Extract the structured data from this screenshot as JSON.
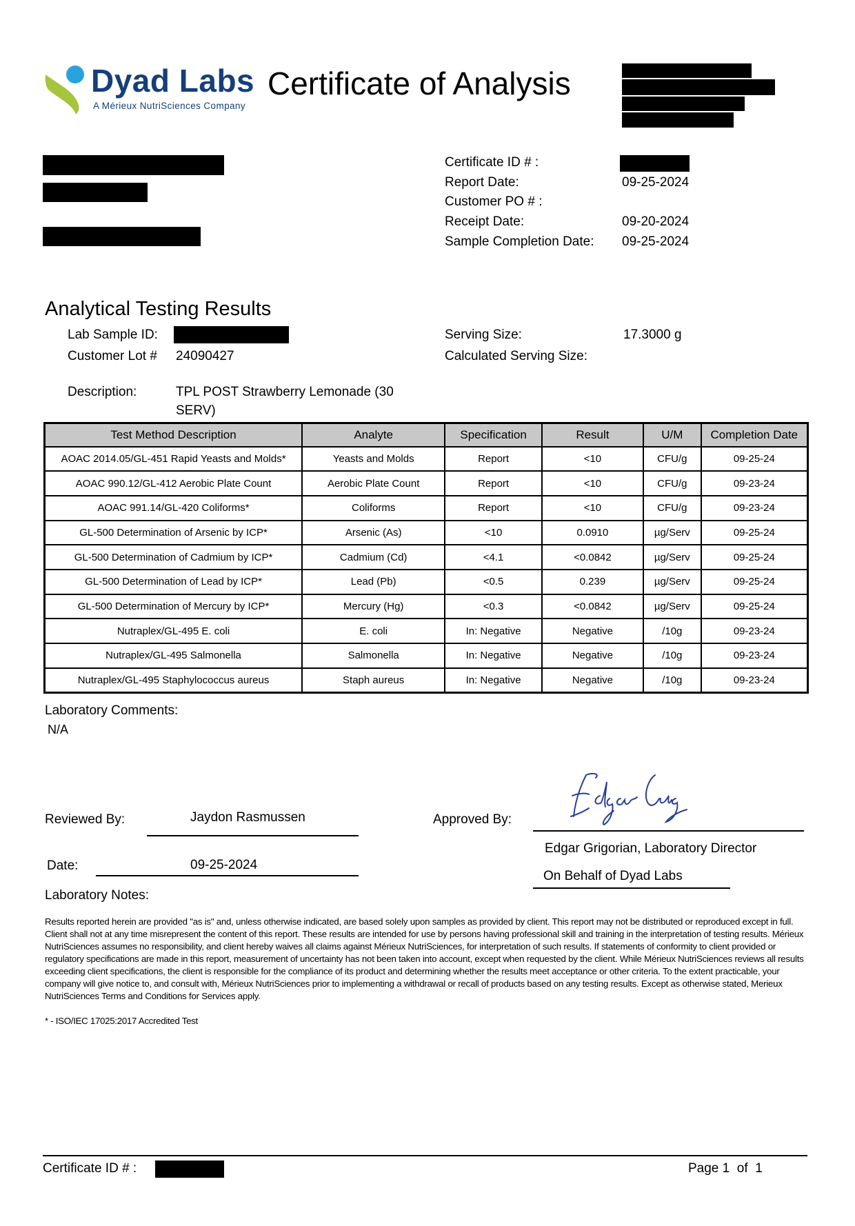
{
  "header": {
    "brand": "Dyad Labs",
    "brand_sub": "A Mérieux NutriSciences Company",
    "title": "Certificate of Analysis",
    "brand_color": "#163f7a",
    "accent_blue": "#29a3dc",
    "accent_green": "#a6c43c"
  },
  "info": [
    {
      "label": "Certificate ID # :",
      "value": ""
    },
    {
      "label": "Report Date:",
      "value": "09-25-2024"
    },
    {
      "label": "Customer PO # :",
      "value": ""
    },
    {
      "label": "Receipt Date:",
      "value": "09-20-2024"
    },
    {
      "label": "Sample Completion Date:",
      "value": "09-25-2024"
    }
  ],
  "section_title": "Analytical Testing Results",
  "sample": {
    "lab_id_label": "Lab Sample ID:",
    "lot_label": "Customer Lot #",
    "lot_value": "24090427",
    "serving_label": "Serving Size:",
    "serving_value": "17.3000 g",
    "calc_label": "Calculated Serving Size:",
    "desc_label": "Description:",
    "desc_line1": "TPL POST Strawberry Lemonade (30",
    "desc_line2": "SERV)"
  },
  "table": {
    "headers": [
      "Test Method Description",
      "Analyte",
      "Specification",
      "Result",
      "U/M",
      "Completion Date"
    ],
    "rows": [
      [
        "AOAC 2014.05/GL-451 Rapid Yeasts and Molds*",
        "Yeasts and Molds",
        "Report",
        "<10",
        "CFU/g",
        "09-25-24"
      ],
      [
        "AOAC 990.12/GL-412 Aerobic Plate Count",
        "Aerobic Plate Count",
        "Report",
        "<10",
        "CFU/g",
        "09-23-24"
      ],
      [
        "AOAC 991.14/GL-420 Coliforms*",
        "Coliforms",
        "Report",
        "<10",
        "CFU/g",
        "09-23-24"
      ],
      [
        "GL-500 Determination of Arsenic by ICP*",
        "Arsenic (As)",
        "<10",
        "0.0910",
        "µg/Serv",
        "09-25-24"
      ],
      [
        "GL-500 Determination of Cadmium by ICP*",
        "Cadmium (Cd)",
        "<4.1",
        "<0.0842",
        "µg/Serv",
        "09-25-24"
      ],
      [
        "GL-500 Determination of Lead by ICP*",
        "Lead (Pb)",
        "<0.5",
        "0.239",
        "µg/Serv",
        "09-25-24"
      ],
      [
        "GL-500 Determination of Mercury by ICP*",
        "Mercury (Hg)",
        "<0.3",
        "<0.0842",
        "µg/Serv",
        "09-25-24"
      ],
      [
        "Nutraplex/GL-495 E. coli",
        "E. coli",
        "In: Negative",
        "Negative",
        "/10g",
        "09-23-24"
      ],
      [
        "Nutraplex/GL-495 Salmonella",
        "Salmonella",
        "In: Negative",
        "Negative",
        "/10g",
        "09-23-24"
      ],
      [
        "Nutraplex/GL-495 Staphylococcus aureus",
        "Staph aureus",
        "In: Negative",
        "Negative",
        "/10g",
        "09-23-24"
      ]
    ]
  },
  "comments": {
    "label": "Laboratory Comments:",
    "value": "N/A"
  },
  "signoff": {
    "reviewed_label": "Reviewed By:",
    "reviewer": "Jaydon Rasmussen",
    "date_label": "Date:",
    "date": "09-25-2024",
    "approved_label": "Approved By:",
    "approver": "Edgar Grigorian, Laboratory Director",
    "behalf": "On Behalf of Dyad Labs"
  },
  "notes": {
    "label": "Laboratory Notes:",
    "text": "Results reported herein are provided \"as is\" and, unless otherwise indicated, are based solely upon samples as provided by client. This report may not be distributed or reproduced except in full. Client shall not at any time misrepresent the content of this report. These results are intended for use by persons having professional skill and training in the interpretation of testing results. Mérieux NutriSciences assumes no responsibility, and client hereby waives all claims against Mérieux NutriSciences, for interpretation of such results. If statements of conformity to client provided or regulatory specifications are made in this report, measurement of uncertainty has not been taken into account, except when requested by the client. While Mérieux NutriSciences reviews all results exceeding client specifications, the client is responsible for the compliance of its product and determining whether the results meet acceptance or other criteria. To the extent practicable, your company will give notice to, and consult with, Mérieux NutriSciences prior to implementing a withdrawal or recall of products based on any testing results. Except as otherwise stated, Merieux NutriSciences Terms and Conditions for Services apply.",
    "footnote": "* - ISO/IEC 17025:2017 Accredited Test"
  },
  "footer": {
    "cert_label": "Certificate ID # :",
    "page_label": "Page",
    "page": "1",
    "of_label": "of",
    "total": "1"
  }
}
